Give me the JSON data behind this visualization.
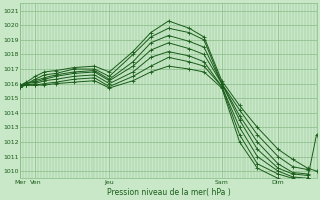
{
  "bg_color": "#c8e8c8",
  "grid_color": "#88bb88",
  "line_color": "#1a5c1a",
  "xlabel": "Pression niveau de la mer( hPa )",
  "ylim": [
    1009.5,
    1021.5
  ],
  "yticks": [
    1010,
    1011,
    1012,
    1013,
    1014,
    1015,
    1016,
    1017,
    1018,
    1019,
    1020,
    1021
  ],
  "xlim": [
    0,
    100
  ],
  "day_labels": [
    "Mer",
    "Ven",
    "Jeu",
    "Sam",
    "Dim"
  ],
  "day_positions": [
    0,
    5,
    30,
    68,
    87
  ],
  "series": [
    {
      "x": [
        0,
        2,
        5,
        8,
        12,
        18,
        25,
        30,
        38,
        44,
        50,
        57,
        62,
        68,
        74,
        80,
        87,
        92,
        97,
        100
      ],
      "y": [
        1015.9,
        1016.1,
        1016.5,
        1016.8,
        1016.9,
        1017.1,
        1017.2,
        1016.8,
        1018.2,
        1019.5,
        1020.3,
        1019.8,
        1019.2,
        1016.2,
        1014.5,
        1013.0,
        1011.5,
        1010.8,
        1010.2,
        1010.0
      ]
    },
    {
      "x": [
        0,
        2,
        5,
        8,
        12,
        18,
        25,
        30,
        38,
        44,
        50,
        57,
        62,
        68,
        74,
        80,
        87,
        92,
        97
      ],
      "y": [
        1015.9,
        1016.0,
        1016.3,
        1016.6,
        1016.7,
        1017.0,
        1017.0,
        1016.5,
        1018.0,
        1019.2,
        1019.8,
        1019.5,
        1019.0,
        1016.0,
        1014.2,
        1012.5,
        1011.0,
        1010.3,
        1010.1
      ]
    },
    {
      "x": [
        0,
        2,
        5,
        8,
        12,
        18,
        25,
        30,
        38,
        44,
        50,
        57,
        62,
        68,
        74,
        80,
        87,
        92,
        97
      ],
      "y": [
        1015.9,
        1016.0,
        1016.2,
        1016.4,
        1016.6,
        1016.8,
        1016.9,
        1016.3,
        1017.5,
        1018.8,
        1019.3,
        1018.9,
        1018.5,
        1016.0,
        1013.8,
        1012.0,
        1010.5,
        1009.9,
        1009.8
      ]
    },
    {
      "x": [
        0,
        2,
        5,
        8,
        12,
        18,
        25,
        30,
        38,
        44,
        50,
        57,
        62,
        68,
        74,
        80,
        87,
        92,
        97
      ],
      "y": [
        1015.9,
        1016.0,
        1016.1,
        1016.3,
        1016.5,
        1016.7,
        1016.8,
        1016.2,
        1017.2,
        1018.3,
        1018.8,
        1018.4,
        1018.0,
        1016.0,
        1013.5,
        1011.5,
        1010.2,
        1009.8,
        1009.7
      ]
    },
    {
      "x": [
        0,
        2,
        5,
        8,
        12,
        18,
        25,
        30,
        38,
        44,
        50,
        57,
        62,
        68,
        74,
        80,
        87,
        92,
        97
      ],
      "y": [
        1015.8,
        1015.9,
        1016.0,
        1016.2,
        1016.3,
        1016.5,
        1016.6,
        1016.0,
        1016.8,
        1017.8,
        1018.2,
        1017.9,
        1017.5,
        1015.8,
        1013.0,
        1011.0,
        1010.0,
        1009.6,
        1009.5
      ]
    },
    {
      "x": [
        0,
        2,
        5,
        8,
        12,
        18,
        25,
        30,
        38,
        44,
        50,
        57,
        62,
        68,
        74,
        80,
        87,
        92,
        97,
        100
      ],
      "y": [
        1015.8,
        1015.9,
        1015.9,
        1016.0,
        1016.1,
        1016.3,
        1016.4,
        1015.8,
        1016.5,
        1017.2,
        1017.8,
        1017.5,
        1017.2,
        1015.8,
        1012.5,
        1010.5,
        1009.8,
        1009.5,
        1009.5,
        1012.5
      ]
    },
    {
      "x": [
        0,
        2,
        5,
        8,
        12,
        18,
        25,
        30,
        38,
        44,
        50,
        57,
        62,
        68,
        74,
        80,
        87,
        92,
        97
      ],
      "y": [
        1015.8,
        1015.9,
        1015.9,
        1015.9,
        1016.0,
        1016.1,
        1016.2,
        1015.7,
        1016.2,
        1016.8,
        1017.2,
        1017.0,
        1016.8,
        1015.7,
        1012.0,
        1010.2,
        1009.5,
        1009.3,
        1009.2
      ]
    }
  ]
}
